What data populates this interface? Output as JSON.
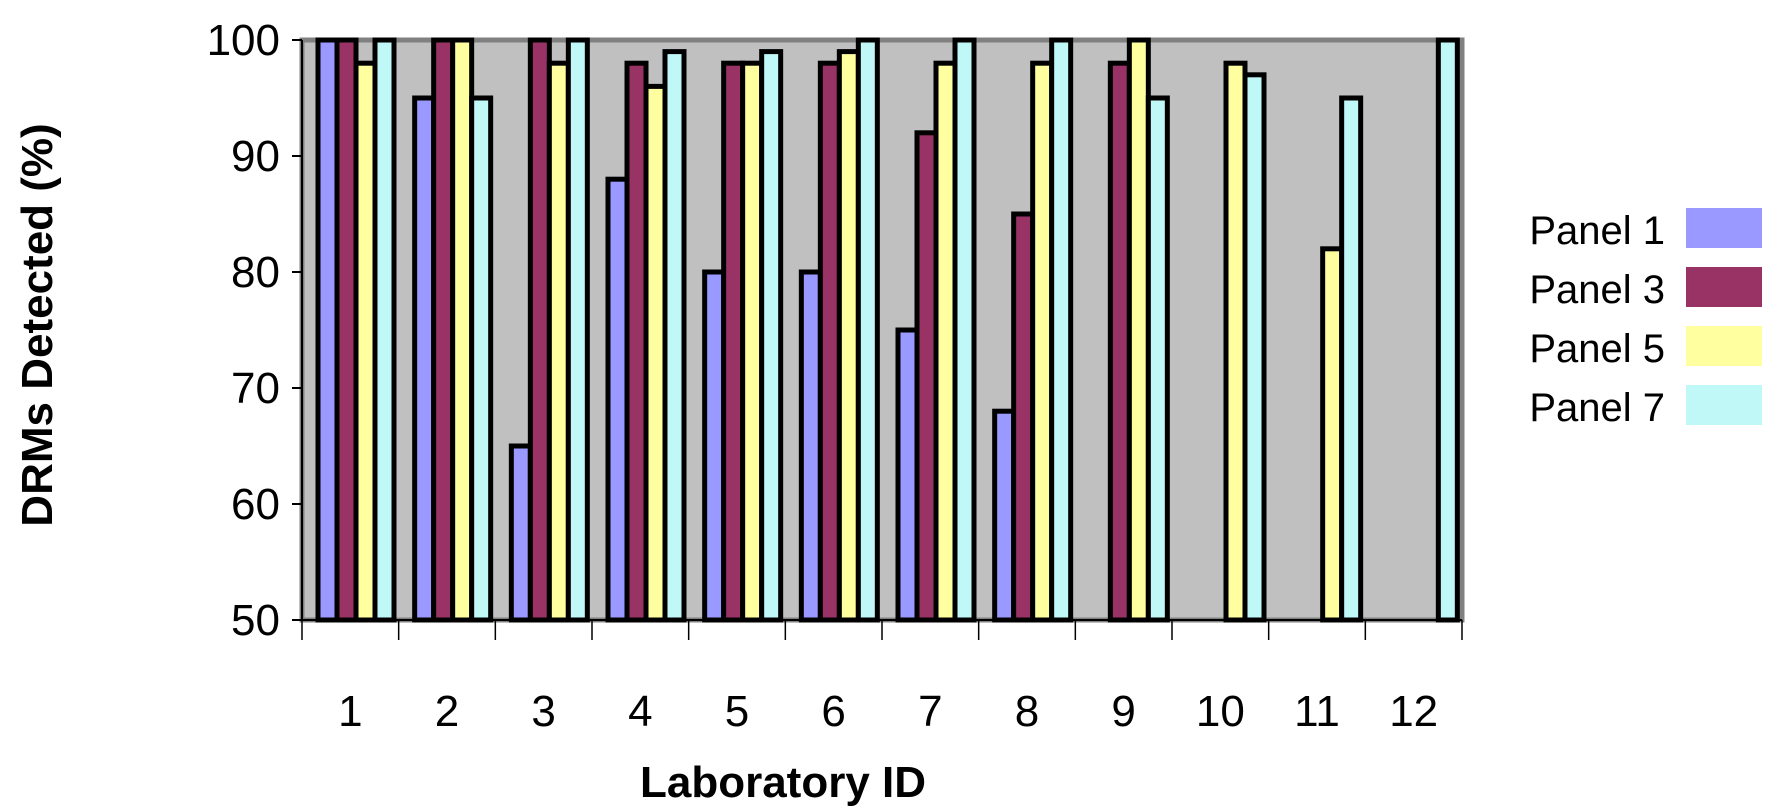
{
  "chart_data": {
    "type": "bar",
    "title": "",
    "xlabel": "Laboratory ID",
    "ylabel": "DRMs Detected (%)",
    "ylim": [
      50,
      100
    ],
    "yticks": [
      50,
      60,
      70,
      80,
      90,
      100
    ],
    "grid": false,
    "legend_position": "right",
    "categories": [
      "1",
      "2",
      "3",
      "4",
      "5",
      "6",
      "7",
      "8",
      "9",
      "10",
      "11",
      "12"
    ],
    "series": [
      {
        "name": "Panel 1",
        "color": "#9999ff",
        "values": [
          100,
          95,
          65,
          88,
          80,
          80,
          75,
          68,
          null,
          null,
          null,
          null
        ]
      },
      {
        "name": "Panel 3",
        "color": "#993366",
        "values": [
          100,
          100,
          100,
          98,
          98,
          98,
          92,
          85,
          98,
          null,
          null,
          null
        ]
      },
      {
        "name": "Panel 5",
        "color": "#ffffa0",
        "values": [
          98,
          100,
          98,
          96,
          98,
          99,
          98,
          98,
          100,
          98,
          82,
          null
        ]
      },
      {
        "name": "Panel 7",
        "color": "#c0f8f8",
        "values": [
          100,
          95,
          100,
          99,
          99,
          100,
          100,
          100,
          95,
          97,
          95,
          100
        ]
      }
    ],
    "plot_background": "#c0c0c0"
  }
}
